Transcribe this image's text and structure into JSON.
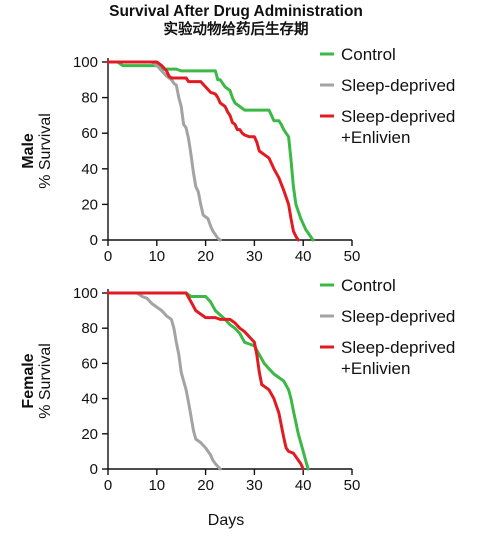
{
  "figure": {
    "title": "Survival After Drug Administration",
    "subtitle": "实验动物给药后生存期"
  },
  "chart_data": [
    {
      "type": "line",
      "panel_label": "Male",
      "ylabel": "% Survival",
      "xlabel": "",
      "xlim": [
        0,
        50
      ],
      "ylim": [
        0,
        100
      ],
      "x_ticks": [
        "0",
        "10",
        "20",
        "30",
        "40",
        "50"
      ],
      "y_ticks": [
        "0",
        "20",
        "40",
        "60",
        "80",
        "100"
      ],
      "grid": false,
      "legend_position": "right",
      "series": [
        {
          "name": "Control",
          "color": "#3cb846",
          "points": [
            [
              0,
              100
            ],
            [
              2,
              100
            ],
            [
              3,
              98
            ],
            [
              4,
              98
            ],
            [
              10,
              98
            ],
            [
              11,
              96
            ],
            [
              14,
              96
            ],
            [
              15,
              95
            ],
            [
              22,
              95
            ],
            [
              22.5,
              90
            ],
            [
              23,
              90
            ],
            [
              24,
              86
            ],
            [
              25,
              84
            ],
            [
              25.5,
              80
            ],
            [
              26,
              77
            ],
            [
              27,
              75
            ],
            [
              28,
              73
            ],
            [
              33,
              73
            ],
            [
              33.5,
              70
            ],
            [
              34,
              67
            ],
            [
              35,
              67
            ],
            [
              35.5,
              65
            ],
            [
              36,
              62
            ],
            [
              36.5,
              60
            ],
            [
              37,
              58
            ],
            [
              37.5,
              45
            ],
            [
              38,
              30
            ],
            [
              38.5,
              20
            ],
            [
              39.5,
              12
            ],
            [
              40.5,
              6
            ],
            [
              41.5,
              2
            ],
            [
              42,
              0
            ]
          ]
        },
        {
          "name": "Sleep-deprived",
          "color": "#a3a3a3",
          "points": [
            [
              0,
              100
            ],
            [
              9,
              100
            ],
            [
              10,
              98
            ],
            [
              11,
              95
            ],
            [
              12,
              92
            ],
            [
              13,
              90
            ],
            [
              13.5,
              88
            ],
            [
              14,
              87
            ],
            [
              14.5,
              80
            ],
            [
              15,
              75
            ],
            [
              15.5,
              65
            ],
            [
              16,
              63
            ],
            [
              16.5,
              57
            ],
            [
              17,
              48
            ],
            [
              17.5,
              38
            ],
            [
              18,
              30
            ],
            [
              18.5,
              27
            ],
            [
              19,
              20
            ],
            [
              19.5,
              14
            ],
            [
              20,
              13
            ],
            [
              20.5,
              12
            ],
            [
              21,
              8
            ],
            [
              21.5,
              5
            ],
            [
              22,
              3
            ],
            [
              22.5,
              1
            ],
            [
              23,
              0
            ]
          ]
        },
        {
          "name": "Sleep-deprived\n+Enlivien",
          "color": "#e21b23",
          "points": [
            [
              0,
              100
            ],
            [
              10,
              100
            ],
            [
              11,
              98
            ],
            [
              12,
              95
            ],
            [
              12.5,
              92
            ],
            [
              13,
              91
            ],
            [
              16,
              91
            ],
            [
              16.5,
              89
            ],
            [
              19,
              89
            ],
            [
              20,
              86
            ],
            [
              21,
              83
            ],
            [
              22,
              82
            ],
            [
              22.5,
              80
            ],
            [
              23,
              77
            ],
            [
              24,
              75
            ],
            [
              24.5,
              72
            ],
            [
              25,
              70
            ],
            [
              25.5,
              66
            ],
            [
              26,
              65
            ],
            [
              26.5,
              62
            ],
            [
              27,
              62
            ],
            [
              27.5,
              60
            ],
            [
              28,
              59
            ],
            [
              29,
              58
            ],
            [
              30,
              58
            ],
            [
              30.5,
              55
            ],
            [
              31,
              50
            ],
            [
              32,
              48
            ],
            [
              33,
              46
            ],
            [
              34,
              40
            ],
            [
              35,
              35
            ],
            [
              36,
              28
            ],
            [
              37,
              20
            ],
            [
              37.5,
              12
            ],
            [
              38,
              5
            ],
            [
              38.5,
              2
            ],
            [
              39,
              0
            ]
          ]
        }
      ]
    },
    {
      "type": "line",
      "panel_label": "Female",
      "ylabel": "% Survival",
      "xlabel": "Days",
      "xlim": [
        0,
        50
      ],
      "ylim": [
        0,
        100
      ],
      "x_ticks": [
        "0",
        "10",
        "20",
        "30",
        "40",
        "50"
      ],
      "y_ticks": [
        "0",
        "20",
        "40",
        "60",
        "80",
        "100"
      ],
      "grid": false,
      "legend_position": "right",
      "series": [
        {
          "name": "Control",
          "color": "#3cb846",
          "points": [
            [
              0,
              100
            ],
            [
              16,
              100
            ],
            [
              17,
              98
            ],
            [
              20,
              98
            ],
            [
              21,
              95
            ],
            [
              22,
              90
            ],
            [
              24,
              85
            ],
            [
              25,
              82
            ],
            [
              26,
              80
            ],
            [
              27,
              77
            ],
            [
              28,
              72
            ],
            [
              29,
              71
            ],
            [
              30,
              70
            ],
            [
              31,
              65
            ],
            [
              32,
              60
            ],
            [
              33,
              57
            ],
            [
              34,
              54
            ],
            [
              35,
              52
            ],
            [
              36,
              50
            ],
            [
              37,
              45
            ],
            [
              37.5,
              40
            ],
            [
              38,
              33
            ],
            [
              39,
              20
            ],
            [
              40,
              10
            ],
            [
              40.5,
              5
            ],
            [
              41,
              0
            ]
          ]
        },
        {
          "name": "Sleep-deprived",
          "color": "#a3a3a3",
          "points": [
            [
              0,
              100
            ],
            [
              6,
              100
            ],
            [
              7,
              98
            ],
            [
              8,
              97
            ],
            [
              9,
              94
            ],
            [
              10,
              92
            ],
            [
              11,
              90
            ],
            [
              12,
              87
            ],
            [
              13,
              85
            ],
            [
              13.5,
              80
            ],
            [
              14,
              72
            ],
            [
              14.5,
              65
            ],
            [
              15,
              55
            ],
            [
              15.5,
              50
            ],
            [
              16,
              45
            ],
            [
              16.5,
              38
            ],
            [
              17,
              30
            ],
            [
              17.5,
              22
            ],
            [
              18,
              17
            ],
            [
              19,
              15
            ],
            [
              20,
              12
            ],
            [
              21,
              8
            ],
            [
              21.5,
              5
            ],
            [
              22,
              3
            ],
            [
              23,
              0
            ]
          ]
        },
        {
          "name": "Sleep-deprived\n+Enlivien",
          "color": "#e21b23",
          "points": [
            [
              0,
              100
            ],
            [
              16,
              100
            ],
            [
              17,
              95
            ],
            [
              18,
              90
            ],
            [
              19,
              88
            ],
            [
              20,
              86
            ],
            [
              22,
              86
            ],
            [
              23,
              85
            ],
            [
              25,
              85
            ],
            [
              26,
              83
            ],
            [
              27,
              80
            ],
            [
              28,
              78
            ],
            [
              29,
              75
            ],
            [
              30,
              72
            ],
            [
              30.5,
              65
            ],
            [
              31,
              55
            ],
            [
              31.5,
              48
            ],
            [
              32,
              47
            ],
            [
              33,
              45
            ],
            [
              34,
              40
            ],
            [
              35,
              32
            ],
            [
              36,
              18
            ],
            [
              36.5,
              12
            ],
            [
              37,
              10
            ],
            [
              38,
              9
            ],
            [
              39,
              5
            ],
            [
              39.5,
              3
            ],
            [
              40,
              0
            ]
          ]
        }
      ]
    }
  ]
}
